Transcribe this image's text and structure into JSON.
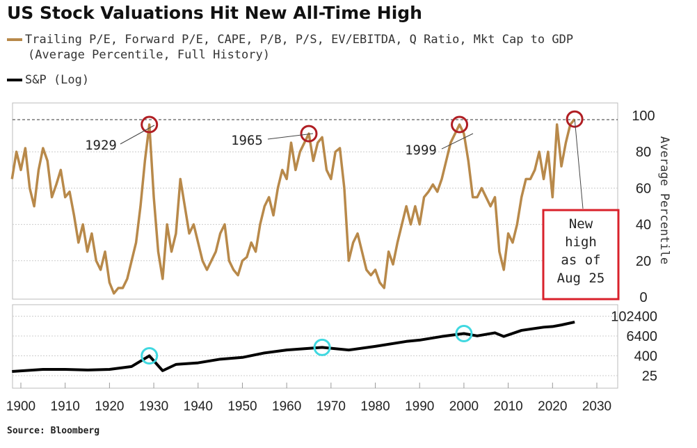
{
  "title": "US Stock Valuations Hit New All-Time High",
  "legend": [
    {
      "label": "Trailing P/E, Forward P/E, CAPE, P/B, P/S, EV/EBITDA, Q Ratio, Mkt Cap to GDP",
      "label2": "(Average Percentile, Full History)",
      "color": "#b8894a"
    },
    {
      "label": "S&P (Log)",
      "color": "#000000"
    }
  ],
  "source": "Source: Bloomberg",
  "chart_data": [
    {
      "type": "line",
      "ylabel": "Average Percentile",
      "ylim": [
        0,
        100
      ],
      "yticks": [
        "0",
        "20",
        "40",
        "60",
        "80",
        "100"
      ],
      "grid": true,
      "reference_line": 100,
      "series": [
        {
          "name": "Trailing P/E, Forward P/E, CAPE, P/B, P/S, EV/EBITDA, Q Ratio, Mkt Cap to GDP (Average Percentile, Full History)",
          "color": "#b8894a",
          "x": [
            1898,
            1899,
            1900,
            1901,
            1902,
            1903,
            1904,
            1905,
            1906,
            1907,
            1908,
            1909,
            1910,
            1911,
            1912,
            1913,
            1914,
            1915,
            1916,
            1917,
            1918,
            1919,
            1920,
            1921,
            1922,
            1923,
            1924,
            1925,
            1926,
            1927,
            1928,
            1929,
            1930,
            1931,
            1932,
            1933,
            1934,
            1935,
            1936,
            1937,
            1938,
            1939,
            1940,
            1941,
            1942,
            1943,
            1944,
            1945,
            1946,
            1947,
            1948,
            1949,
            1950,
            1951,
            1952,
            1953,
            1954,
            1955,
            1956,
            1957,
            1958,
            1959,
            1960,
            1961,
            1962,
            1963,
            1964,
            1965,
            1966,
            1967,
            1968,
            1969,
            1970,
            1971,
            1972,
            1973,
            1974,
            1975,
            1976,
            1977,
            1978,
            1979,
            1980,
            1981,
            1982,
            1983,
            1984,
            1985,
            1986,
            1987,
            1988,
            1989,
            1990,
            1991,
            1992,
            1993,
            1994,
            1995,
            1996,
            1997,
            1998,
            1999,
            2000,
            2001,
            2002,
            2003,
            2004,
            2005,
            2006,
            2007,
            2008,
            2009,
            2010,
            2011,
            2012,
            2013,
            2014,
            2015,
            2016,
            2017,
            2018,
            2019,
            2020,
            2021,
            2022,
            2023,
            2024,
            2025
          ],
          "y": [
            65,
            80,
            70,
            82,
            60,
            50,
            70,
            82,
            75,
            55,
            62,
            70,
            55,
            58,
            45,
            30,
            40,
            25,
            35,
            20,
            15,
            25,
            8,
            2,
            5,
            5,
            10,
            20,
            30,
            50,
            75,
            95,
            55,
            25,
            10,
            40,
            25,
            35,
            65,
            50,
            35,
            40,
            30,
            20,
            15,
            20,
            25,
            35,
            40,
            20,
            15,
            12,
            20,
            22,
            30,
            25,
            40,
            50,
            55,
            45,
            60,
            70,
            65,
            85,
            70,
            80,
            85,
            90,
            75,
            85,
            88,
            70,
            65,
            80,
            82,
            60,
            20,
            30,
            35,
            25,
            15,
            12,
            15,
            8,
            5,
            25,
            18,
            30,
            40,
            50,
            40,
            50,
            40,
            55,
            58,
            62,
            58,
            65,
            75,
            85,
            90,
            95,
            90,
            75,
            55,
            55,
            60,
            55,
            50,
            55,
            25,
            15,
            35,
            30,
            40,
            55,
            65,
            65,
            70,
            80,
            65,
            80,
            55,
            95,
            72,
            85,
            95,
            98
          ]
        }
      ],
      "annotations": [
        {
          "text": "1929",
          "x": 1929
        },
        {
          "text": "1965",
          "x": 1965
        },
        {
          "text": "1999",
          "x": 1999
        },
        {
          "text": "New high as of Aug 25",
          "lines": [
            "New",
            "high",
            "as of",
            "Aug 25"
          ],
          "x": 2025
        }
      ],
      "highlight_circles": {
        "color": "#b01e23",
        "x": [
          1929,
          1965,
          1999,
          2025
        ]
      }
    },
    {
      "type": "line",
      "yscale": "log",
      "yticks": [
        "25",
        "400",
        "6400",
        "102400"
      ],
      "xlim": [
        1898,
        2030
      ],
      "xticks": [
        "1900",
        "1910",
        "1920",
        "1930",
        "1940",
        "1950",
        "1960",
        "1970",
        "1980",
        "1990",
        "2000",
        "2010",
        "2020",
        "2030"
      ],
      "series": [
        {
          "name": "S&P (Log)",
          "color": "#000000",
          "x": [
            1898,
            1905,
            1910,
            1915,
            1920,
            1925,
            1929,
            1932,
            1935,
            1940,
            1945,
            1950,
            1955,
            1960,
            1968,
            1974,
            1980,
            1987,
            1990,
            1995,
            2000,
            2003,
            2007,
            2009,
            2013,
            2018,
            2020,
            2022,
            2025
          ],
          "y": [
            45,
            60,
            60,
            55,
            60,
            90,
            400,
            50,
            120,
            150,
            250,
            320,
            600,
            900,
            1300,
            900,
            1500,
            3000,
            3600,
            6000,
            9000,
            6500,
            10000,
            6000,
            14000,
            22000,
            24000,
            30000,
            45000
          ]
        }
      ],
      "highlight_circles": {
        "color": "#40d8e0",
        "x": [
          1929,
          1968,
          2000
        ]
      }
    }
  ]
}
